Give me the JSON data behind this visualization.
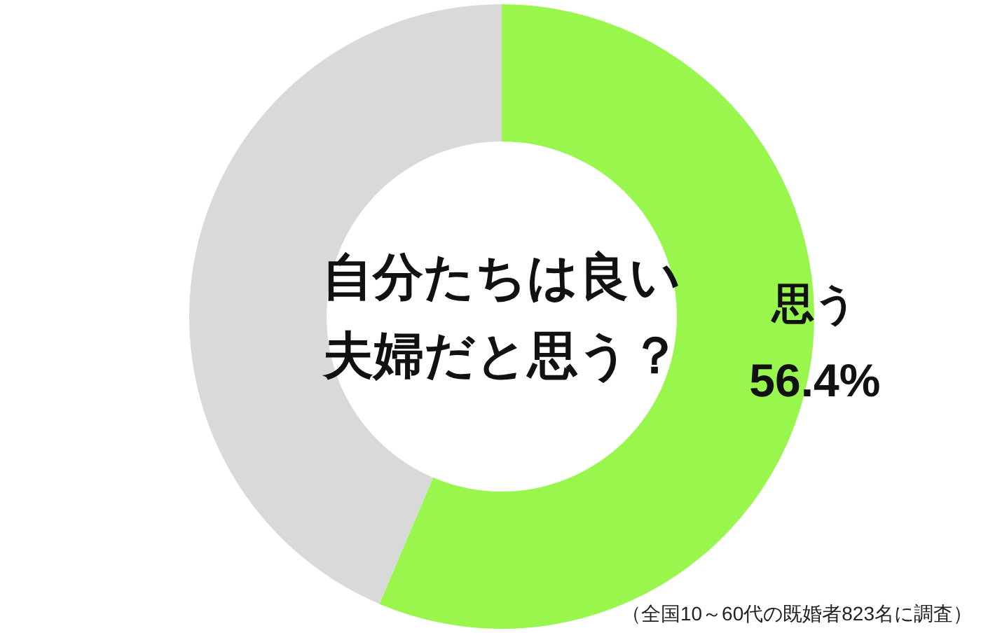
{
  "chart_data": {
    "type": "donut",
    "title": "自分たちは良い夫婦だと思う？",
    "categories": [
      "思う",
      null
    ],
    "values": [
      56.4,
      43.6
    ],
    "colors": [
      "#99f64c",
      "#d9d9d9"
    ],
    "value_labels": [
      "56.4%",
      null
    ],
    "annotations": [
      "（全国10～60代の既婚者823名に調査）"
    ]
  }
}
